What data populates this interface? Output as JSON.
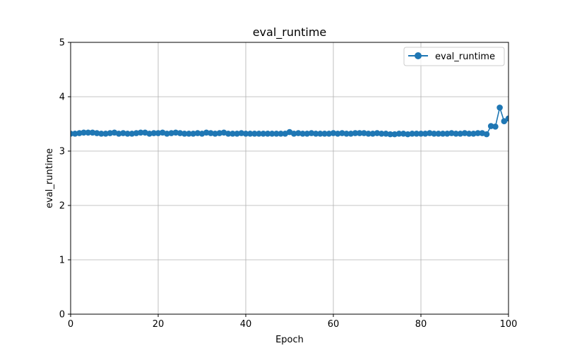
{
  "chart_data": {
    "type": "line",
    "title": "eval_runtime",
    "xlabel": "Epoch",
    "ylabel": "eval_runtime",
    "xlim": [
      0,
      100
    ],
    "ylim": [
      0,
      5
    ],
    "xticks": [
      0,
      20,
      40,
      60,
      80,
      100
    ],
    "yticks": [
      0,
      1,
      2,
      3,
      4,
      5
    ],
    "grid": true,
    "legend_position": "top-right",
    "series": [
      {
        "name": "eval_runtime",
        "color": "#1f77b4",
        "marker": "circle",
        "x": [
          0,
          1,
          2,
          3,
          4,
          5,
          6,
          7,
          8,
          9,
          10,
          11,
          12,
          13,
          14,
          15,
          16,
          17,
          18,
          19,
          20,
          21,
          22,
          23,
          24,
          25,
          26,
          27,
          28,
          29,
          30,
          31,
          32,
          33,
          34,
          35,
          36,
          37,
          38,
          39,
          40,
          41,
          42,
          43,
          44,
          45,
          46,
          47,
          48,
          49,
          50,
          51,
          52,
          53,
          54,
          55,
          56,
          57,
          58,
          59,
          60,
          61,
          62,
          63,
          64,
          65,
          66,
          67,
          68,
          69,
          70,
          71,
          72,
          73,
          74,
          75,
          76,
          77,
          78,
          79,
          80,
          81,
          82,
          83,
          84,
          85,
          86,
          87,
          88,
          89,
          90,
          91,
          92,
          93,
          94,
          95,
          96,
          97,
          98,
          99,
          100
        ],
        "y": [
          3.32,
          3.32,
          3.33,
          3.34,
          3.34,
          3.34,
          3.33,
          3.32,
          3.32,
          3.33,
          3.34,
          3.32,
          3.33,
          3.32,
          3.32,
          3.33,
          3.34,
          3.34,
          3.32,
          3.33,
          3.33,
          3.34,
          3.32,
          3.33,
          3.34,
          3.33,
          3.32,
          3.32,
          3.32,
          3.33,
          3.32,
          3.34,
          3.33,
          3.32,
          3.33,
          3.34,
          3.32,
          3.32,
          3.32,
          3.33,
          3.32,
          3.32,
          3.32,
          3.32,
          3.32,
          3.32,
          3.32,
          3.32,
          3.32,
          3.32,
          3.35,
          3.32,
          3.33,
          3.32,
          3.32,
          3.33,
          3.32,
          3.32,
          3.32,
          3.32,
          3.33,
          3.32,
          3.33,
          3.32,
          3.32,
          3.33,
          3.33,
          3.33,
          3.32,
          3.32,
          3.33,
          3.32,
          3.32,
          3.31,
          3.31,
          3.32,
          3.32,
          3.31,
          3.32,
          3.32,
          3.32,
          3.32,
          3.33,
          3.32,
          3.32,
          3.32,
          3.32,
          3.33,
          3.32,
          3.32,
          3.33,
          3.32,
          3.32,
          3.33,
          3.33,
          3.31,
          3.46,
          3.45,
          3.8,
          3.55,
          3.6
        ]
      }
    ]
  }
}
